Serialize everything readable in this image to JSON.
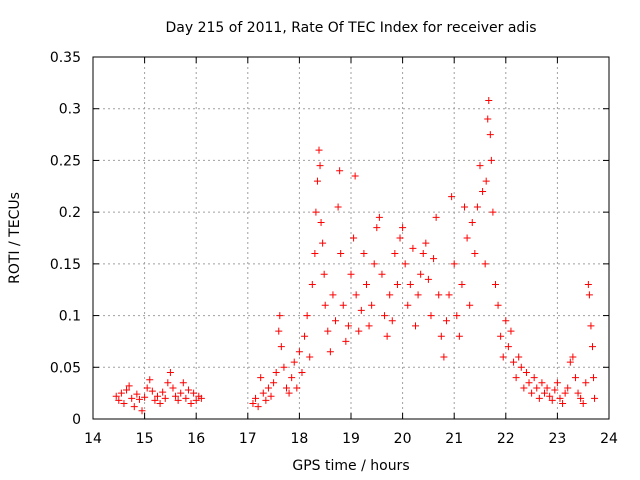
{
  "chart_data": {
    "type": "scatter",
    "title": "Day 215 of 2011, Rate Of TEC Index for receiver adis",
    "xlabel": "GPS time / hours",
    "ylabel": "ROTI / TECUs",
    "xlim": [
      14,
      24
    ],
    "ylim": [
      0,
      0.35
    ],
    "x_ticks": [
      "14",
      "15",
      "16",
      "17",
      "18",
      "19",
      "20",
      "21",
      "22",
      "23",
      "24"
    ],
    "y_ticks": [
      "0",
      "0.05",
      "0.1",
      "0.15",
      "0.2",
      "0.25",
      "0.3",
      "0.35"
    ],
    "grid": true,
    "marker": "plus",
    "marker_color": "#ff0000",
    "series": [
      {
        "points": [
          [
            14.45,
            0.022
          ],
          [
            14.5,
            0.018
          ],
          [
            14.55,
            0.025
          ],
          [
            14.6,
            0.015
          ],
          [
            14.65,
            0.028
          ],
          [
            14.7,
            0.032
          ],
          [
            14.75,
            0.02
          ],
          [
            14.8,
            0.012
          ],
          [
            14.85,
            0.024
          ],
          [
            14.9,
            0.019
          ],
          [
            14.95,
            0.008
          ],
          [
            15.0,
            0.021
          ],
          [
            15.05,
            0.03
          ],
          [
            15.1,
            0.038
          ],
          [
            15.15,
            0.027
          ],
          [
            15.2,
            0.018
          ],
          [
            15.25,
            0.022
          ],
          [
            15.3,
            0.015
          ],
          [
            15.35,
            0.026
          ],
          [
            15.4,
            0.02
          ],
          [
            15.45,
            0.035
          ],
          [
            15.5,
            0.045
          ],
          [
            15.55,
            0.03
          ],
          [
            15.6,
            0.022
          ],
          [
            15.65,
            0.018
          ],
          [
            15.7,
            0.025
          ],
          [
            15.75,
            0.035
          ],
          [
            15.8,
            0.02
          ],
          [
            15.85,
            0.028
          ],
          [
            15.9,
            0.015
          ],
          [
            15.95,
            0.025
          ],
          [
            16.0,
            0.018
          ],
          [
            16.05,
            0.022
          ],
          [
            16.1,
            0.02
          ],
          [
            17.1,
            0.015
          ],
          [
            17.15,
            0.02
          ],
          [
            17.2,
            0.012
          ],
          [
            17.25,
            0.04
          ],
          [
            17.3,
            0.025
          ],
          [
            17.35,
            0.018
          ],
          [
            17.4,
            0.03
          ],
          [
            17.45,
            0.022
          ],
          [
            17.5,
            0.035
          ],
          [
            17.55,
            0.045
          ],
          [
            17.6,
            0.085
          ],
          [
            17.62,
            0.1
          ],
          [
            17.65,
            0.07
          ],
          [
            17.7,
            0.05
          ],
          [
            17.75,
            0.03
          ],
          [
            17.8,
            0.025
          ],
          [
            17.85,
            0.04
          ],
          [
            17.9,
            0.055
          ],
          [
            17.95,
            0.03
          ],
          [
            18.0,
            0.065
          ],
          [
            18.05,
            0.045
          ],
          [
            18.1,
            0.08
          ],
          [
            18.15,
            0.1
          ],
          [
            18.2,
            0.06
          ],
          [
            18.25,
            0.13
          ],
          [
            18.3,
            0.16
          ],
          [
            18.32,
            0.2
          ],
          [
            18.35,
            0.23
          ],
          [
            18.38,
            0.26
          ],
          [
            18.4,
            0.245
          ],
          [
            18.42,
            0.19
          ],
          [
            18.45,
            0.17
          ],
          [
            18.48,
            0.14
          ],
          [
            18.5,
            0.11
          ],
          [
            18.55,
            0.085
          ],
          [
            18.6,
            0.065
          ],
          [
            18.65,
            0.12
          ],
          [
            18.7,
            0.095
          ],
          [
            18.75,
            0.205
          ],
          [
            18.78,
            0.24
          ],
          [
            18.8,
            0.16
          ],
          [
            18.85,
            0.11
          ],
          [
            18.9,
            0.075
          ],
          [
            18.95,
            0.09
          ],
          [
            19.0,
            0.14
          ],
          [
            19.05,
            0.175
          ],
          [
            19.08,
            0.235
          ],
          [
            19.1,
            0.12
          ],
          [
            19.15,
            0.085
          ],
          [
            19.2,
            0.105
          ],
          [
            19.25,
            0.16
          ],
          [
            19.3,
            0.13
          ],
          [
            19.35,
            0.09
          ],
          [
            19.4,
            0.11
          ],
          [
            19.45,
            0.15
          ],
          [
            19.5,
            0.185
          ],
          [
            19.55,
            0.195
          ],
          [
            19.6,
            0.14
          ],
          [
            19.65,
            0.1
          ],
          [
            19.7,
            0.08
          ],
          [
            19.75,
            0.12
          ],
          [
            19.8,
            0.095
          ],
          [
            19.85,
            0.16
          ],
          [
            19.9,
            0.13
          ],
          [
            19.95,
            0.175
          ],
          [
            20.0,
            0.185
          ],
          [
            20.05,
            0.15
          ],
          [
            20.1,
            0.11
          ],
          [
            20.15,
            0.13
          ],
          [
            20.2,
            0.165
          ],
          [
            20.25,
            0.09
          ],
          [
            20.3,
            0.12
          ],
          [
            20.35,
            0.14
          ],
          [
            20.4,
            0.16
          ],
          [
            20.45,
            0.17
          ],
          [
            20.5,
            0.135
          ],
          [
            20.55,
            0.1
          ],
          [
            20.6,
            0.155
          ],
          [
            20.65,
            0.195
          ],
          [
            20.7,
            0.12
          ],
          [
            20.75,
            0.08
          ],
          [
            20.8,
            0.06
          ],
          [
            20.85,
            0.095
          ],
          [
            20.9,
            0.12
          ],
          [
            20.95,
            0.215
          ],
          [
            21.0,
            0.15
          ],
          [
            21.05,
            0.1
          ],
          [
            21.1,
            0.08
          ],
          [
            21.15,
            0.13
          ],
          [
            21.2,
            0.205
          ],
          [
            21.25,
            0.175
          ],
          [
            21.3,
            0.11
          ],
          [
            21.35,
            0.19
          ],
          [
            21.4,
            0.16
          ],
          [
            21.45,
            0.205
          ],
          [
            21.5,
            0.245
          ],
          [
            21.55,
            0.22
          ],
          [
            21.6,
            0.15
          ],
          [
            21.62,
            0.23
          ],
          [
            21.65,
            0.29
          ],
          [
            21.67,
            0.308
          ],
          [
            21.7,
            0.275
          ],
          [
            21.72,
            0.25
          ],
          [
            21.75,
            0.2
          ],
          [
            21.8,
            0.13
          ],
          [
            21.85,
            0.11
          ],
          [
            21.9,
            0.08
          ],
          [
            21.95,
            0.06
          ],
          [
            22.0,
            0.095
          ],
          [
            22.05,
            0.07
          ],
          [
            22.1,
            0.085
          ],
          [
            22.15,
            0.055
          ],
          [
            22.2,
            0.04
          ],
          [
            22.25,
            0.06
          ],
          [
            22.3,
            0.05
          ],
          [
            22.35,
            0.03
          ],
          [
            22.4,
            0.045
          ],
          [
            22.45,
            0.035
          ],
          [
            22.5,
            0.025
          ],
          [
            22.55,
            0.04
          ],
          [
            22.6,
            0.03
          ],
          [
            22.65,
            0.02
          ],
          [
            22.7,
            0.035
          ],
          [
            22.75,
            0.025
          ],
          [
            22.8,
            0.03
          ],
          [
            22.85,
            0.022
          ],
          [
            22.9,
            0.018
          ],
          [
            22.95,
            0.028
          ],
          [
            23.0,
            0.035
          ],
          [
            23.05,
            0.02
          ],
          [
            23.1,
            0.015
          ],
          [
            23.15,
            0.025
          ],
          [
            23.2,
            0.03
          ],
          [
            23.25,
            0.055
          ],
          [
            23.3,
            0.06
          ],
          [
            23.35,
            0.04
          ],
          [
            23.4,
            0.025
          ],
          [
            23.45,
            0.02
          ],
          [
            23.5,
            0.015
          ],
          [
            23.55,
            0.035
          ],
          [
            23.6,
            0.13
          ],
          [
            23.62,
            0.12
          ],
          [
            23.65,
            0.09
          ],
          [
            23.68,
            0.07
          ],
          [
            23.7,
            0.04
          ],
          [
            23.72,
            0.02
          ]
        ]
      }
    ]
  }
}
